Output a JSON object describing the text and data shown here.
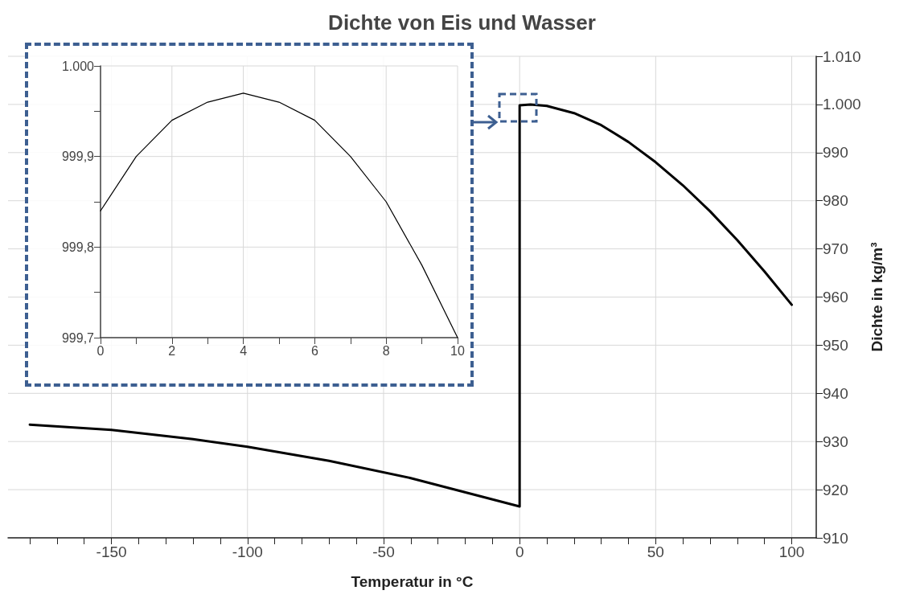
{
  "chart_data": [
    {
      "type": "line",
      "title": "Dichte von Eis und Wasser",
      "xlabel": "Temperatur in °C",
      "ylabel": "Dichte in kg/m³",
      "series": [
        {
          "color": "#000000",
          "x": [
            -180,
            -150,
            -120,
            -100,
            -70,
            -40,
            0,
            0,
            4,
            10,
            20,
            30,
            40,
            50,
            60,
            70,
            80,
            90,
            100
          ],
          "values": [
            933.5,
            932.4,
            930.5,
            928.9,
            926,
            922.4,
            916.5,
            999.8,
            1000,
            999.7,
            998.2,
            995.7,
            992.2,
            988.0,
            983.2,
            977.8,
            971.8,
            965.3,
            958.4
          ]
        }
      ],
      "xlim": [
        -188,
        109
      ],
      "xticks": [
        {
          "value": -180,
          "label": null
        },
        {
          "value": -170,
          "label": null
        },
        {
          "value": -160,
          "label": null
        },
        -150,
        {
          "value": -140,
          "label": null
        },
        {
          "value": -130,
          "label": null
        },
        {
          "value": -120,
          "label": null
        },
        {
          "value": -110,
          "label": null
        },
        -100,
        {
          "value": -90,
          "label": null
        },
        {
          "value": -80,
          "label": null
        },
        {
          "value": -70,
          "label": null
        },
        {
          "value": -60,
          "label": null
        },
        -50,
        {
          "value": -40,
          "label": null
        },
        {
          "value": -30,
          "label": null
        },
        {
          "value": -20,
          "label": null
        },
        {
          "value": -10,
          "label": null
        },
        0,
        {
          "value": 10,
          "label": null
        },
        {
          "value": 20,
          "label": null
        },
        {
          "value": 30,
          "label": null
        },
        {
          "value": 40,
          "label": null
        },
        50,
        {
          "value": 60,
          "label": null
        },
        {
          "value": 70,
          "label": null
        },
        {
          "value": 80,
          "label": null
        },
        {
          "value": 90,
          "label": null
        },
        100
      ],
      "ylim": [
        910,
        1010
      ],
      "yticks": [
        910,
        920,
        930,
        940,
        950,
        960,
        970,
        980,
        990,
        {
          "value": 1000,
          "label": "1.000"
        },
        {
          "value": 1010,
          "label": "1.010"
        }
      ],
      "grid": true,
      "marker": "none",
      "line_style": "solid"
    },
    {
      "type": "line",
      "series": [
        {
          "color": "#000000",
          "x": [
            0,
            1,
            2,
            3,
            4,
            5,
            6,
            7,
            8,
            9,
            10
          ],
          "values": [
            999.84,
            999.9,
            999.94,
            999.96,
            999.97,
            999.96,
            999.94,
            999.9,
            999.85,
            999.78,
            999.7
          ]
        }
      ],
      "xlim": [
        0,
        10
      ],
      "xticks": [
        0,
        {
          "value": 1,
          "label": null
        },
        2,
        {
          "value": 3,
          "label": null
        },
        4,
        {
          "value": 5,
          "label": null
        },
        6,
        {
          "value": 7,
          "label": null
        },
        8,
        {
          "value": 9,
          "label": null
        },
        10
      ],
      "ylim": [
        999.7,
        1000
      ],
      "yticks": [
        {
          "value": 999.7,
          "label": "999,7"
        },
        {
          "value": 999.75,
          "label": null
        },
        {
          "value": 999.8,
          "label": "999,8"
        },
        {
          "value": 999.85,
          "label": null
        },
        {
          "value": 999.9,
          "label": "999,9"
        },
        {
          "value": 999.95,
          "label": null
        },
        {
          "value": 1000,
          "label": "1.000"
        }
      ],
      "grid": true,
      "marker": "none",
      "line_style": "solid"
    }
  ]
}
